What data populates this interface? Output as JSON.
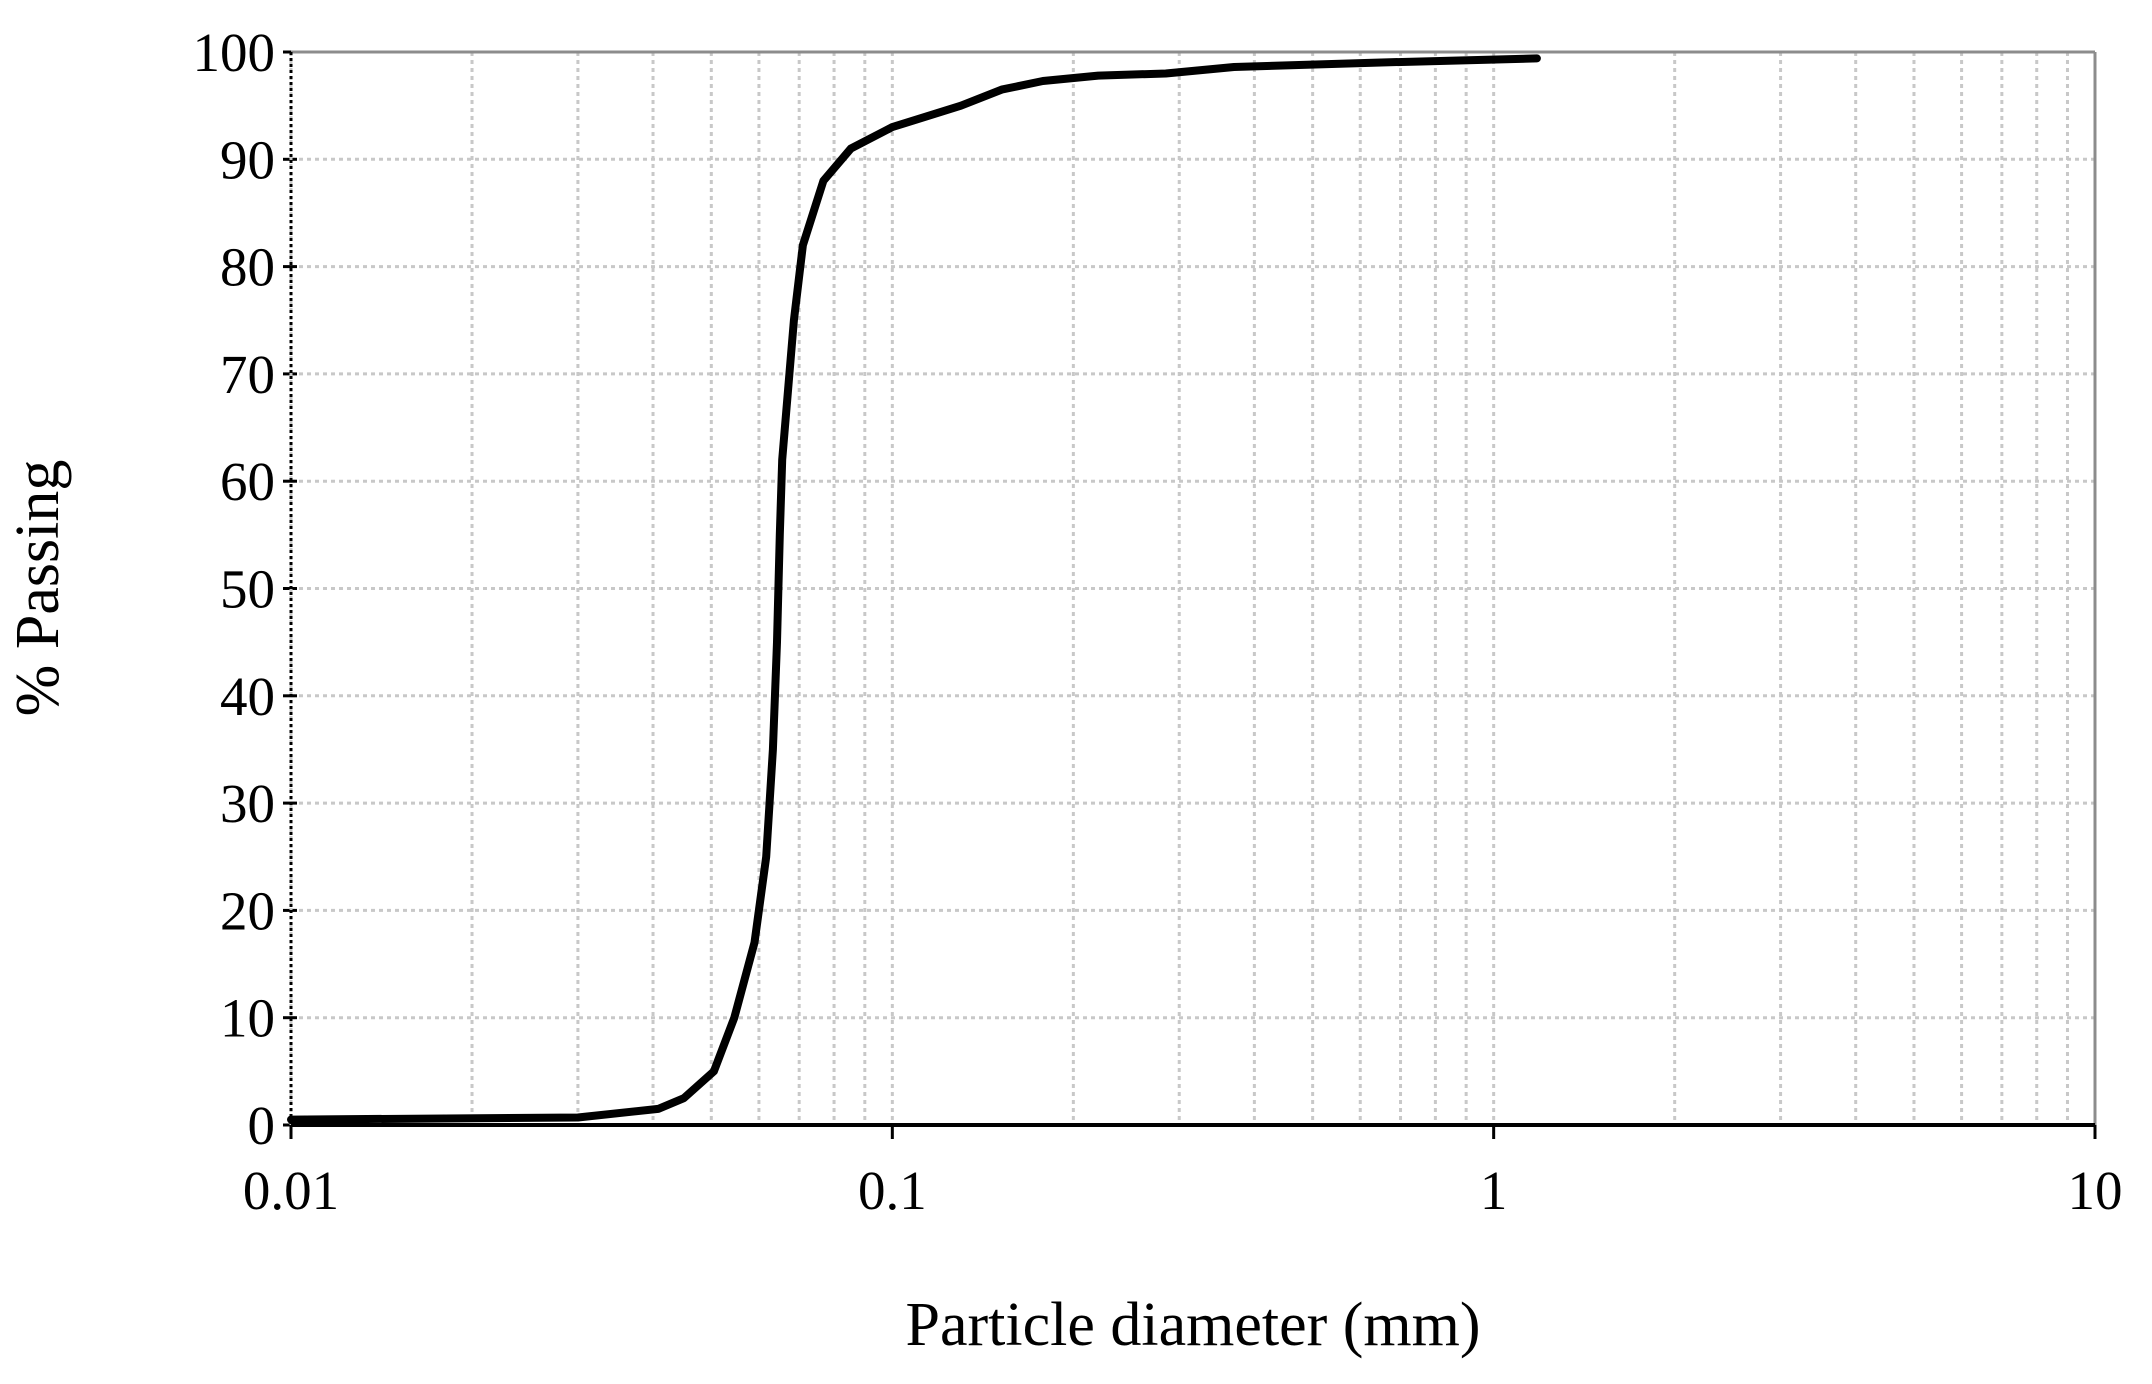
{
  "chart_data": {
    "type": "line",
    "x_label": "Particle diameter (mm)",
    "y_label": "% Passing",
    "xscale": "log",
    "x": [
      0.01,
      0.03,
      0.0408,
      0.045,
      0.0505,
      0.0546,
      0.059,
      0.0617,
      0.0633,
      0.0643,
      0.065,
      0.0656,
      0.0686,
      0.071,
      0.0768,
      0.0853,
      0.1,
      0.13,
      0.152,
      0.178,
      0.22,
      0.285,
      0.37,
      0.63,
      1.18
    ],
    "values": [
      0.5,
      0.7,
      1.5,
      2.5,
      5,
      10,
      17,
      25,
      35,
      45,
      55,
      62,
      75,
      82,
      88,
      91,
      93,
      95,
      96.5,
      97.3,
      97.8,
      98,
      98.6,
      99,
      99.4
    ],
    "color": "#000000",
    "xlim": [
      0.01,
      10
    ],
    "xticks": [
      0.01,
      0.1,
      1,
      10
    ],
    "ylim": [
      0,
      100
    ],
    "yticks": [
      0,
      10,
      20,
      30,
      40,
      50,
      60,
      70,
      80,
      90,
      100
    ],
    "grid": true
  }
}
